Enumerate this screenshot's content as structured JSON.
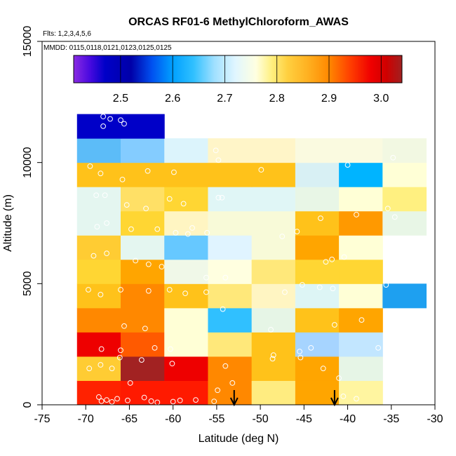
{
  "chart_data": {
    "type": "heatmap",
    "title": "ORCAS RF01-6 MethylChloroform_AWAS",
    "flights_note": "Flts: 1,2,3,4,5,6",
    "dates_note": "MMDD: 0115,0118,0121,0123,0125,0125",
    "xlabel": "Latitude (deg N)",
    "ylabel": "Altitude (m)",
    "xlim": [
      -75,
      -30
    ],
    "ylim": [
      0,
      15000
    ],
    "x_ticks": [
      -75,
      -70,
      -65,
      -60,
      -55,
      -50,
      -45,
      -40,
      -35,
      -30
    ],
    "x_tick_labels": [
      "-75",
      "-70",
      "-65",
      "-60",
      "-55",
      "-50",
      "-45",
      "-40",
      "-35",
      "-30"
    ],
    "y_ticks": [
      0,
      5000,
      10000,
      15000
    ],
    "y_tick_labels": [
      "0",
      "5000",
      "10000",
      "15000"
    ],
    "colorbar": {
      "range": [
        2.41,
        3.04
      ],
      "ticks": [
        2.5,
        2.6,
        2.7,
        2.8,
        2.9,
        3.0
      ],
      "tick_labels": [
        "2.5",
        "2.6",
        "2.7",
        "2.8",
        "2.9",
        "3.0"
      ],
      "stops": [
        {
          "v": 2.41,
          "c": "#8a2be2"
        },
        {
          "v": 2.44,
          "c": "#4b0ae0"
        },
        {
          "v": 2.47,
          "c": "#0000c8"
        },
        {
          "v": 2.52,
          "c": "#0000a8"
        },
        {
          "v": 2.56,
          "c": "#0050f0"
        },
        {
          "v": 2.6,
          "c": "#00a0ff"
        },
        {
          "v": 2.64,
          "c": "#30c0ff"
        },
        {
          "v": 2.68,
          "c": "#a0e0ff"
        },
        {
          "v": 2.72,
          "c": "#e0f6ff"
        },
        {
          "v": 2.76,
          "c": "#ffffe0"
        },
        {
          "v": 2.79,
          "c": "#fff080"
        },
        {
          "v": 2.82,
          "c": "#ffd040"
        },
        {
          "v": 2.86,
          "c": "#ffb020"
        },
        {
          "v": 2.9,
          "c": "#ff8800"
        },
        {
          "v": 2.94,
          "c": "#ff4000"
        },
        {
          "v": 2.98,
          "c": "#f00000"
        },
        {
          "v": 3.01,
          "c": "#d00000"
        },
        {
          "v": 3.04,
          "c": "#a02020"
        }
      ]
    },
    "bin_width": 5,
    "bin_height": 1000,
    "cells": [
      {
        "lon": -71,
        "alt": 0,
        "color": "#ff2200"
      },
      {
        "lon": -66,
        "alt": 0,
        "color": "#ff1a00"
      },
      {
        "lon": -61,
        "alt": 0,
        "color": "#ff1a00"
      },
      {
        "lon": -56,
        "alt": 0,
        "color": "#ff8800"
      },
      {
        "lon": -51,
        "alt": 0,
        "color": "#ffec80"
      },
      {
        "lon": -46,
        "alt": 0,
        "color": "#ffa500"
      },
      {
        "lon": -41,
        "alt": 0,
        "color": "#fff5a0"
      },
      {
        "lon": -71,
        "alt": 1000,
        "color": "#ffcc33"
      },
      {
        "lon": -66,
        "alt": 1000,
        "color": "#a22222"
      },
      {
        "lon": -61,
        "alt": 1000,
        "color": "#ee0000"
      },
      {
        "lon": -56,
        "alt": 1000,
        "color": "#ff8800"
      },
      {
        "lon": -51,
        "alt": 1000,
        "color": "#ffc21a"
      },
      {
        "lon": -46,
        "alt": 1000,
        "color": "#ffa500"
      },
      {
        "lon": -41,
        "alt": 1000,
        "color": "#e6f5e6"
      },
      {
        "lon": -71,
        "alt": 2000,
        "color": "#ee0000"
      },
      {
        "lon": -66,
        "alt": 2000,
        "color": "#ff5a00"
      },
      {
        "lon": -61,
        "alt": 2000,
        "color": "#ffffd6"
      },
      {
        "lon": -56,
        "alt": 2000,
        "color": "#ffe87a"
      },
      {
        "lon": -51,
        "alt": 2000,
        "color": "#ffc21a"
      },
      {
        "lon": -46,
        "alt": 2000,
        "color": "#a6d4ff"
      },
      {
        "lon": -41,
        "alt": 2000,
        "color": "#c2e6ff"
      },
      {
        "lon": -71,
        "alt": 3000,
        "color": "#ff8800"
      },
      {
        "lon": -66,
        "alt": 3000,
        "color": "#ff8800"
      },
      {
        "lon": -61,
        "alt": 3000,
        "color": "#ffffd6"
      },
      {
        "lon": -56,
        "alt": 3000,
        "color": "#30c0ff"
      },
      {
        "lon": -51,
        "alt": 3000,
        "color": "#e6f5e6"
      },
      {
        "lon": -46,
        "alt": 3000,
        "color": "#ffc21a"
      },
      {
        "lon": -41,
        "alt": 3000,
        "color": "#ffa500"
      },
      {
        "lon": -71,
        "alt": 4000,
        "color": "#ffc21a"
      },
      {
        "lon": -66,
        "alt": 4000,
        "color": "#ff8800"
      },
      {
        "lon": -61,
        "alt": 4000,
        "color": "#ffc21a"
      },
      {
        "lon": -56,
        "alt": 4000,
        "color": "#ffe87a"
      },
      {
        "lon": -51,
        "alt": 4000,
        "color": "#fff5c2"
      },
      {
        "lon": -46,
        "alt": 4000,
        "color": "#ddf5f5"
      },
      {
        "lon": -41,
        "alt": 4000,
        "color": "#ffffd6"
      },
      {
        "lon": -36,
        "alt": 4000,
        "color": "#1ea0f0"
      },
      {
        "lon": -71,
        "alt": 5000,
        "color": "#ffd633"
      },
      {
        "lon": -66,
        "alt": 5000,
        "color": "#ffa500"
      },
      {
        "lon": -61,
        "alt": 5000,
        "color": "#f0f8e8"
      },
      {
        "lon": -56,
        "alt": 5000,
        "color": "#ffffe0"
      },
      {
        "lon": -51,
        "alt": 5000,
        "color": "#ffe87a"
      },
      {
        "lon": -46,
        "alt": 5000,
        "color": "#ffd633"
      },
      {
        "lon": -41,
        "alt": 5000,
        "color": "#ffd633"
      },
      {
        "lon": -71,
        "alt": 6000,
        "color": "#ffcc33"
      },
      {
        "lon": -66,
        "alt": 6000,
        "color": "#e4f6f0"
      },
      {
        "lon": -61,
        "alt": 6000,
        "color": "#66c8ff"
      },
      {
        "lon": -56,
        "alt": 6000,
        "color": "#e0f4ff"
      },
      {
        "lon": -51,
        "alt": 6000,
        "color": "#f8fad8"
      },
      {
        "lon": -46,
        "alt": 6000,
        "color": "#ffa500"
      },
      {
        "lon": -41,
        "alt": 6000,
        "color": "#ffffd6"
      },
      {
        "lon": -71,
        "alt": 7000,
        "color": "#e4f6f0"
      },
      {
        "lon": -66,
        "alt": 7000,
        "color": "#ffd633"
      },
      {
        "lon": -61,
        "alt": 7000,
        "color": "#fff5c2"
      },
      {
        "lon": -56,
        "alt": 7000,
        "color": "#f8fad8"
      },
      {
        "lon": -51,
        "alt": 7000,
        "color": "#f8fad8"
      },
      {
        "lon": -46,
        "alt": 7000,
        "color": "#ffc21a"
      },
      {
        "lon": -41,
        "alt": 7000,
        "color": "#ff9900"
      },
      {
        "lon": -36,
        "alt": 7000,
        "color": "#e8f6e6"
      },
      {
        "lon": -71,
        "alt": 8000,
        "color": "#e4f6f0"
      },
      {
        "lon": -66,
        "alt": 8000,
        "color": "#ffe066"
      },
      {
        "lon": -61,
        "alt": 8000,
        "color": "#ffd633"
      },
      {
        "lon": -56,
        "alt": 8000,
        "color": "#e0f6f6"
      },
      {
        "lon": -51,
        "alt": 8000,
        "color": "#e0f6f6"
      },
      {
        "lon": -46,
        "alt": 8000,
        "color": "#e8f6e6"
      },
      {
        "lon": -41,
        "alt": 8000,
        "color": "#ffffd6"
      },
      {
        "lon": -36,
        "alt": 8000,
        "color": "#fff080"
      },
      {
        "lon": -71,
        "alt": 9000,
        "color": "#ffc21a"
      },
      {
        "lon": -66,
        "alt": 9000,
        "color": "#ffc21a"
      },
      {
        "lon": -61,
        "alt": 9000,
        "color": "#ffc21a"
      },
      {
        "lon": -56,
        "alt": 9000,
        "color": "#ffc21a"
      },
      {
        "lon": -51,
        "alt": 9000,
        "color": "#ffc21a"
      },
      {
        "lon": -46,
        "alt": 9000,
        "color": "#d8f0f4"
      },
      {
        "lon": -41,
        "alt": 9000,
        "color": "#00b4ff"
      },
      {
        "lon": -36,
        "alt": 9000,
        "color": "#ffffd6"
      },
      {
        "lon": -71,
        "alt": 10000,
        "color": "#5cbcf8"
      },
      {
        "lon": -66,
        "alt": 10000,
        "color": "#84ccff"
      },
      {
        "lon": -61,
        "alt": 10000,
        "color": "#dcf4fc"
      },
      {
        "lon": -56,
        "alt": 10000,
        "color": "#fff5c8"
      },
      {
        "lon": -51,
        "alt": 10000,
        "color": "#fff5c8"
      },
      {
        "lon": -46,
        "alt": 10000,
        "color": "#fafae0"
      },
      {
        "lon": -41,
        "alt": 10000,
        "color": "#fafae0"
      },
      {
        "lon": -36,
        "alt": 10000,
        "color": "#f2f8e2"
      },
      {
        "lon": -71,
        "alt": 11000,
        "color": "#0000c8"
      },
      {
        "lon": -66,
        "alt": 11000,
        "color": "#0000c8"
      }
    ],
    "points": [
      [
        -68.2,
        150
      ],
      [
        -67.6,
        200
      ],
      [
        -67.0,
        120
      ],
      [
        -68.5,
        320
      ],
      [
        -66.4,
        250
      ],
      [
        -65.2,
        180
      ],
      [
        -63.3,
        300
      ],
      [
        -62.5,
        150
      ],
      [
        -61.8,
        100
      ],
      [
        -60.0,
        130
      ],
      [
        -59.2,
        180
      ],
      [
        -57.4,
        200
      ],
      [
        -55.3,
        140
      ],
      [
        -54.9,
        600
      ],
      [
        -53.2,
        900
      ],
      [
        -41.0,
        1100
      ],
      [
        -39.0,
        250
      ],
      [
        -40.5,
        350
      ],
      [
        -64.9,
        900
      ],
      [
        -69.6,
        1500
      ],
      [
        -68.3,
        1650
      ],
      [
        -67.0,
        1500
      ],
      [
        -66.1,
        1950
      ],
      [
        -63.6,
        1850
      ],
      [
        -60.1,
        1700
      ],
      [
        -54.0,
        1600
      ],
      [
        -48.6,
        1900
      ],
      [
        -45.4,
        1950
      ],
      [
        -42.8,
        1500
      ],
      [
        -68.2,
        2300
      ],
      [
        -66.0,
        2250
      ],
      [
        -62.1,
        2350
      ],
      [
        -60.3,
        2300
      ],
      [
        -45.5,
        2200
      ],
      [
        -44.2,
        2350
      ],
      [
        -36.5,
        2350
      ],
      [
        -48.5,
        2050
      ],
      [
        -65.6,
        3250
      ],
      [
        -63.2,
        3150
      ],
      [
        -54.3,
        3950
      ],
      [
        -48.8,
        3100
      ],
      [
        -41.5,
        3300
      ],
      [
        -38.4,
        3500
      ],
      [
        -69.7,
        4750
      ],
      [
        -68.3,
        4550
      ],
      [
        -66.0,
        4750
      ],
      [
        -62.8,
        4700
      ],
      [
        -60.4,
        4750
      ],
      [
        -58.6,
        4600
      ],
      [
        -56.2,
        4650
      ],
      [
        -47.2,
        4650
      ],
      [
        -45.2,
        4950
      ],
      [
        -43.2,
        4850
      ],
      [
        -41.7,
        4800
      ],
      [
        -35.6,
        4950
      ],
      [
        -69.1,
        6150
      ],
      [
        -67.6,
        6250
      ],
      [
        -64.3,
        5950
      ],
      [
        -62.8,
        5800
      ],
      [
        -61.3,
        5700
      ],
      [
        -56.2,
        5250
      ],
      [
        -54.0,
        5250
      ],
      [
        -42.5,
        5900
      ],
      [
        -41.8,
        6000
      ],
      [
        -40.4,
        6100
      ],
      [
        -68.7,
        7350
      ],
      [
        -67.6,
        7500
      ],
      [
        -64.8,
        7250
      ],
      [
        -61.8,
        7250
      ],
      [
        -59.7,
        7100
      ],
      [
        -58.3,
        7050
      ],
      [
        -57.8,
        7300
      ],
      [
        -56.1,
        7100
      ],
      [
        -47.5,
        6950
      ],
      [
        -45.8,
        7150
      ],
      [
        -43.1,
        7700
      ],
      [
        -39.0,
        7850
      ],
      [
        -34.6,
        7750
      ],
      [
        -68.8,
        8650
      ],
      [
        -67.8,
        8650
      ],
      [
        -65.3,
        8250
      ],
      [
        -63.1,
        8100
      ],
      [
        -60.4,
        8500
      ],
      [
        -58.8,
        8300
      ],
      [
        -54.8,
        8550
      ],
      [
        -54.4,
        8550
      ],
      [
        -35.4,
        8100
      ],
      [
        -69.5,
        9850
      ],
      [
        -68.3,
        9550
      ],
      [
        -65.8,
        9300
      ],
      [
        -62.9,
        9650
      ],
      [
        -59.9,
        9600
      ],
      [
        -49.9,
        9700
      ],
      [
        -40.0,
        9900
      ],
      [
        -55.1,
        10500
      ],
      [
        -54.8,
        10100
      ],
      [
        -34.8,
        10200
      ],
      [
        -68.0,
        11500
      ],
      [
        -67.2,
        11800
      ],
      [
        -65.6,
        11600
      ],
      [
        -68.0,
        11900
      ],
      [
        -66.0,
        11750
      ]
    ],
    "arrows": [
      {
        "lon": -53.0,
        "label": "arrow-1"
      },
      {
        "lon": -41.5,
        "label": "arrow-2"
      }
    ]
  }
}
